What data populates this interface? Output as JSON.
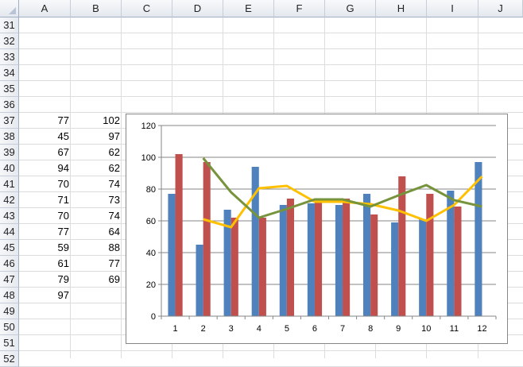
{
  "sheet": {
    "columns": [
      "A",
      "B",
      "C",
      "D",
      "E",
      "F",
      "G",
      "H",
      "I",
      "J"
    ],
    "rows": [
      "31",
      "32",
      "33",
      "34",
      "35",
      "36",
      "37",
      "38",
      "39",
      "40",
      "41",
      "42",
      "43",
      "44",
      "45",
      "46",
      "47",
      "48",
      "49",
      "50",
      "51",
      "52"
    ],
    "col_a_values": [
      "",
      "",
      "",
      "",
      "",
      "",
      "77",
      "45",
      "67",
      "94",
      "70",
      "71",
      "70",
      "77",
      "59",
      "61",
      "79",
      "97",
      "",
      "",
      "",
      ""
    ],
    "col_b_values": [
      "",
      "",
      "",
      "",
      "",
      "",
      "102",
      "97",
      "62",
      "62",
      "74",
      "73",
      "74",
      "64",
      "88",
      "77",
      "69",
      "",
      "",
      "",
      "",
      ""
    ]
  },
  "chart_data": {
    "type": "bar",
    "categories": [
      "1",
      "2",
      "3",
      "4",
      "5",
      "6",
      "7",
      "8",
      "9",
      "10",
      "11",
      "12"
    ],
    "ylim": [
      0,
      120
    ],
    "yticks": [
      "0",
      "20",
      "40",
      "60",
      "80",
      "100",
      "120"
    ],
    "grid": true,
    "series": [
      {
        "type": "bar",
        "color": "#4f81bd",
        "values": [
          77,
          45,
          67,
          94,
          70,
          71,
          70,
          77,
          59,
          61,
          79,
          97
        ]
      },
      {
        "type": "bar",
        "color": "#c0504d",
        "values": [
          102,
          97,
          62,
          62,
          74,
          73,
          74,
          64,
          88,
          77,
          69,
          null
        ]
      },
      {
        "type": "line",
        "color": "#ffc000",
        "values": [
          null,
          61,
          56,
          80.5,
          82,
          72,
          72,
          70.5,
          66.5,
          60,
          70,
          88
        ]
      },
      {
        "type": "line",
        "color": "#77933c",
        "values": [
          null,
          99.5,
          78,
          62,
          67.5,
          73.5,
          73.5,
          69,
          76,
          82.5,
          73,
          69
        ]
      }
    ]
  }
}
